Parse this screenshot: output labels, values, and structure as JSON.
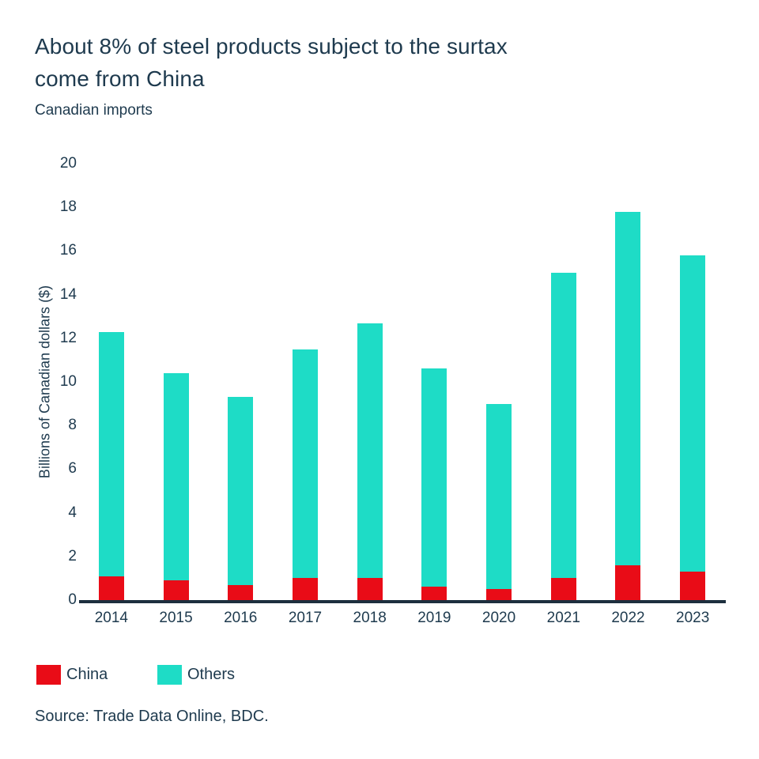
{
  "header": {
    "title_lines": [
      "About 8% of steel products subject to the surtax",
      "come from China"
    ],
    "subtitle": "Canadian imports"
  },
  "chart_data": {
    "type": "bar",
    "stacked": true,
    "title": "About 8% of steel products subject to the surtax come from China",
    "subtitle": "Canadian imports",
    "categories": [
      "2014",
      "2015",
      "2016",
      "2017",
      "2018",
      "2019",
      "2020",
      "2021",
      "2022",
      "2023"
    ],
    "series": [
      {
        "name": "China",
        "color": "#e90c17",
        "values": [
          1.1,
          0.9,
          0.7,
          1.0,
          1.0,
          0.6,
          0.5,
          1.0,
          1.6,
          1.3
        ]
      },
      {
        "name": "Others",
        "color": "#1edcc6",
        "values": [
          11.2,
          9.5,
          8.6,
          10.5,
          11.7,
          10.0,
          8.5,
          14.0,
          16.2,
          14.5
        ]
      }
    ],
    "totals": [
      12.3,
      10.4,
      9.3,
      11.5,
      12.7,
      10.6,
      9.0,
      15.0,
      17.8,
      15.8
    ],
    "xlabel": "",
    "ylabel": "Billions of Canadian dollars ($)",
    "ylim": [
      0,
      20
    ],
    "yticks": [
      0,
      2,
      4,
      6,
      8,
      10,
      12,
      14,
      16,
      18,
      20
    ],
    "grid": false,
    "legend_position": "bottom"
  },
  "legend": {
    "items": [
      {
        "label": "China",
        "color": "#e90c17"
      },
      {
        "label": "Others",
        "color": "#1edcc6"
      }
    ]
  },
  "source": "Source: Trade Data Online, BDC.",
  "colors": {
    "text_navy": "#1e3a4e",
    "axis_line": "#1d2f3e",
    "china_red": "#e90c17",
    "others_teal": "#1edcc6"
  }
}
